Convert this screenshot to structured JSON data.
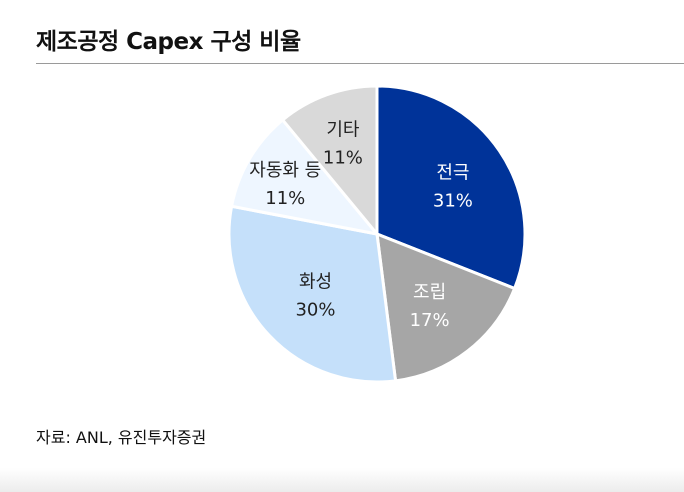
{
  "title": "제조공정 Capex 구성 비율",
  "source": "자료: ANL, 유진투자증권",
  "chart_data": {
    "type": "pie",
    "start": "12 o'clock",
    "direction": "clockwise",
    "slices": [
      {
        "label": "전극",
        "value": 31,
        "value_text": "31%",
        "color": "#003399",
        "text_color": "#ffffff"
      },
      {
        "label": "조립",
        "value": 17,
        "value_text": "17%",
        "color": "#a6a6a6",
        "text_color": "#ffffff"
      },
      {
        "label": "화성",
        "value": 30,
        "value_text": "30%",
        "color": "#c5e0fa",
        "text_color": "#222222"
      },
      {
        "label": "자동화 등",
        "value": 11,
        "value_text": "11%",
        "color": "#eef6ff",
        "text_color": "#222222"
      },
      {
        "label": "기타",
        "value": 11,
        "value_text": "11%",
        "color": "#d9d9d9",
        "text_color": "#222222"
      }
    ]
  }
}
